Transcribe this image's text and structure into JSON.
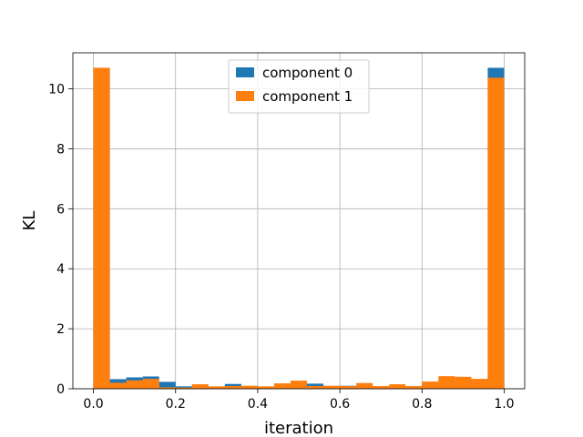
{
  "chart_data": {
    "type": "bar",
    "title": "",
    "xlabel": "iteration",
    "ylabel": "KL",
    "xlim": [
      -0.05,
      1.05
    ],
    "ylim": [
      0,
      11.2
    ],
    "grid": true,
    "legend_position": "top-center",
    "x_ticks": [
      0.0,
      0.2,
      0.4,
      0.6,
      0.8,
      1.0
    ],
    "x_tick_labels": [
      "0.0",
      "0.2",
      "0.4",
      "0.6",
      "0.8",
      "1.0"
    ],
    "y_ticks": [
      0,
      2,
      4,
      6,
      8,
      10
    ],
    "y_tick_labels": [
      "0",
      "2",
      "4",
      "6",
      "8",
      "10"
    ],
    "bin_width": 0.04,
    "bin_starts": [
      0.0,
      0.04,
      0.08,
      0.12,
      0.16,
      0.2,
      0.24,
      0.28,
      0.32,
      0.36,
      0.4,
      0.44,
      0.48,
      0.52,
      0.56,
      0.6,
      0.64,
      0.68,
      0.72,
      0.76,
      0.8,
      0.84,
      0.88,
      0.92,
      0.96
    ],
    "series": [
      {
        "name": "component 0",
        "color": "#1f77b4",
        "values": [
          10.7,
          0.32,
          0.38,
          0.41,
          0.23,
          0.08,
          0.1,
          0.06,
          0.16,
          0.06,
          0.07,
          0.1,
          0.12,
          0.17,
          0.08,
          0.1,
          0.09,
          0.07,
          0.06,
          0.07,
          0.15,
          0.3,
          0.34,
          0.3,
          10.7
        ]
      },
      {
        "name": "component 1",
        "color": "#ff7f0e",
        "values": [
          10.7,
          0.2,
          0.28,
          0.33,
          0.05,
          0.04,
          0.15,
          0.08,
          0.09,
          0.1,
          0.08,
          0.18,
          0.27,
          0.09,
          0.1,
          0.09,
          0.19,
          0.09,
          0.15,
          0.09,
          0.24,
          0.42,
          0.4,
          0.33,
          10.37
        ]
      }
    ]
  }
}
